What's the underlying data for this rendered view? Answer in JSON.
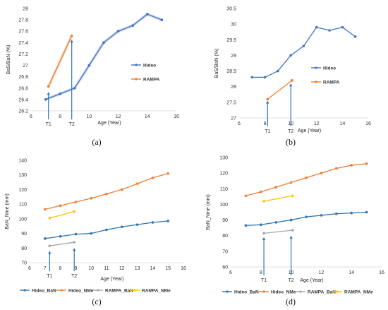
{
  "chart_data": [
    {
      "panel": "a",
      "type": "line",
      "caption": "(a)",
      "xlabel": "Age (Year)",
      "ylabel": "BaS/BaN (%)",
      "xlim": [
        6,
        16
      ],
      "ylim": [
        26.2,
        28
      ],
      "xticks": [
        6,
        8,
        10,
        12,
        14,
        16
      ],
      "yticks": [
        26.2,
        26.4,
        26.6,
        26.8,
        27,
        27.2,
        27.4,
        27.6,
        27.8,
        28
      ],
      "ytick_labels": [
        "26.2",
        "26.4",
        "26.6",
        "26.8",
        "27",
        "27.2",
        "27.4",
        "27.6",
        "27.8",
        "28"
      ],
      "series": [
        {
          "name": "Hideo",
          "color": "#4472C4",
          "x": [
            7,
            8,
            9,
            10,
            11,
            12,
            13,
            14,
            15
          ],
          "y": [
            26.4,
            26.5,
            26.6,
            27.0,
            27.4,
            27.6,
            27.7,
            27.9,
            27.8
          ]
        },
        {
          "name": "RAMPA",
          "color": "#ED7D31",
          "x": [
            7.2,
            8.8
          ],
          "y": [
            26.63,
            27.52
          ]
        }
      ],
      "markers": [
        {
          "label": "T1",
          "x": 7.2,
          "y_top": 26.53
        },
        {
          "label": "T2",
          "x": 8.8,
          "y_top": 27.45
        }
      ],
      "legend_position": "right"
    },
    {
      "panel": "b",
      "type": "line",
      "caption": "(b)",
      "xlabel": "Age (Year)",
      "ylabel": "BaS/BaN (%)",
      "xlim": [
        6,
        16
      ],
      "ylim": [
        27,
        30.5
      ],
      "xticks": [
        6,
        8,
        10,
        12,
        14,
        16
      ],
      "yticks": [
        27,
        27.5,
        28,
        28.5,
        29,
        29.5,
        30,
        30.5
      ],
      "ytick_labels": [
        "27",
        "27.5",
        "28",
        "28.5",
        "29",
        "29.5",
        "30",
        "30.5"
      ],
      "series": [
        {
          "name": "Hideo",
          "color": "#4472C4",
          "x": [
            7,
            8,
            9,
            10,
            11,
            12,
            13,
            14,
            15
          ],
          "y": [
            28.3,
            28.3,
            28.5,
            29.0,
            29.3,
            29.9,
            29.8,
            29.9,
            29.6
          ]
        },
        {
          "name": "RAMPA",
          "color": "#ED7D31",
          "x": [
            8.2,
            10.1
          ],
          "y": [
            27.6,
            28.2
          ]
        }
      ],
      "markers": [
        {
          "label": "T1",
          "x": 8.2,
          "y_top": 27.55
        },
        {
          "label": "T2",
          "x": 10,
          "y_top": 28.1
        }
      ],
      "legend_position": "right"
    },
    {
      "panel": "c",
      "type": "line",
      "caption": "(c)",
      "xlabel": "Age (Year)",
      "ylabel": "BaN_Nme (mm)",
      "xlim": [
        6,
        16
      ],
      "ylim": [
        70,
        140
      ],
      "xticks": [
        6,
        7,
        8,
        9,
        10,
        11,
        12,
        13,
        14,
        15,
        16
      ],
      "yticks": [
        70,
        80,
        90,
        100,
        110,
        120,
        130,
        140
      ],
      "ytick_labels": [
        "70",
        "80",
        "90",
        "100",
        "110",
        "120",
        "130",
        "140"
      ],
      "series": [
        {
          "name": "Hideo_BaN",
          "color": "#2E75B6",
          "x": [
            7,
            8,
            9,
            10,
            11,
            12,
            13,
            14,
            15
          ],
          "y": [
            86.5,
            88,
            89.5,
            90,
            92.5,
            94.5,
            96,
            97.5,
            98.5
          ]
        },
        {
          "name": "Hideo_NMe",
          "color": "#ED7D31",
          "x": [
            7,
            8,
            9,
            10,
            11,
            12,
            13,
            14,
            15
          ],
          "y": [
            106.5,
            109,
            111.5,
            114,
            117,
            120,
            124,
            128,
            131
          ]
        },
        {
          "name": "RAMPA_BaN",
          "color": "#A5A5A5",
          "x": [
            7.3,
            8.9
          ],
          "y": [
            81.5,
            84
          ]
        },
        {
          "name": "RAMPA_NMe",
          "color": "#FFC000",
          "x": [
            7.3,
            8.9
          ],
          "y": [
            100.5,
            105
          ]
        }
      ],
      "markers": [
        {
          "label": "T1",
          "x": 7.3,
          "y_top": 78
        },
        {
          "label": "T2",
          "x": 8.9,
          "y_top": 80
        }
      ],
      "legend_position": "bottom"
    },
    {
      "panel": "d",
      "type": "line",
      "caption": "(d)",
      "xlabel": "Age (Year)",
      "ylabel": "BaN_Nme (mm)",
      "xlim": [
        6,
        16
      ],
      "ylim": [
        60,
        130
      ],
      "xticks": [
        6,
        8,
        10,
        12,
        14,
        16
      ],
      "yticks": [
        60,
        70,
        80,
        90,
        100,
        110,
        120,
        130
      ],
      "ytick_labels": [
        "60",
        "70",
        "80",
        "90",
        "100",
        "110",
        "120",
        "130"
      ],
      "series": [
        {
          "name": "Hideo_BaN",
          "color": "#2E75B6",
          "x": [
            7,
            8,
            9,
            10,
            11,
            12,
            13,
            14,
            15
          ],
          "y": [
            86.5,
            87,
            88.5,
            90,
            92,
            93,
            94,
            94.5,
            95
          ]
        },
        {
          "name": "Hideo_NMe",
          "color": "#ED7D31",
          "x": [
            7,
            8,
            9,
            10,
            11,
            12,
            13,
            14,
            15
          ],
          "y": [
            105.5,
            108,
            111,
            114,
            117,
            120,
            123,
            125,
            126
          ]
        },
        {
          "name": "RAMPA_BaN",
          "color": "#A5A5A5",
          "x": [
            8.2,
            10.1
          ],
          "y": [
            81.5,
            83.5
          ]
        },
        {
          "name": "RAMPA_NMe",
          "color": "#FFC000",
          "x": [
            8.2,
            10.1
          ],
          "y": [
            102,
            105.5
          ]
        }
      ],
      "markers": [
        {
          "label": "T1",
          "x": 8.2,
          "y_top": 79
        },
        {
          "label": "T2",
          "x": 10,
          "y_top": 80
        }
      ],
      "legend_position": "bottom"
    }
  ]
}
